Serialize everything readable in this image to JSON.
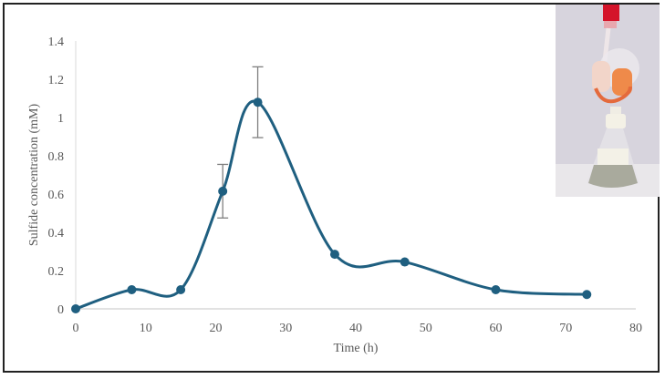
{
  "chart_data": {
    "type": "line",
    "title": "",
    "xlabel": "Time (h)",
    "ylabel": "Sulfide concentration (mM)",
    "xlim": [
      0,
      80
    ],
    "ylim": [
      0,
      1.4
    ],
    "x_ticks": [
      "0",
      "10",
      "20",
      "30",
      "40",
      "50",
      "60",
      "70",
      "80"
    ],
    "y_ticks": [
      "0",
      "0.2",
      "0.4",
      "0.6",
      "0.8",
      "1",
      "1.2",
      "1.4"
    ],
    "grid": false,
    "legend": null,
    "smoothed": true,
    "series": [
      {
        "name": "Sulfide",
        "color": "#1f5f80",
        "x": [
          0,
          8,
          15,
          21,
          26,
          37,
          47,
          60,
          73
        ],
        "values": [
          0,
          0.1,
          0.1,
          0.615,
          1.08,
          0.285,
          0.245,
          0.1,
          0.075
        ],
        "error_bars": [
          {
            "x": 21,
            "low": 0.475,
            "high": 0.755
          },
          {
            "x": 26,
            "low": 0.895,
            "high": 1.265
          }
        ]
      }
    ],
    "inset": "photo of glass flask with orange-filled gas trap and grey liquid"
  }
}
